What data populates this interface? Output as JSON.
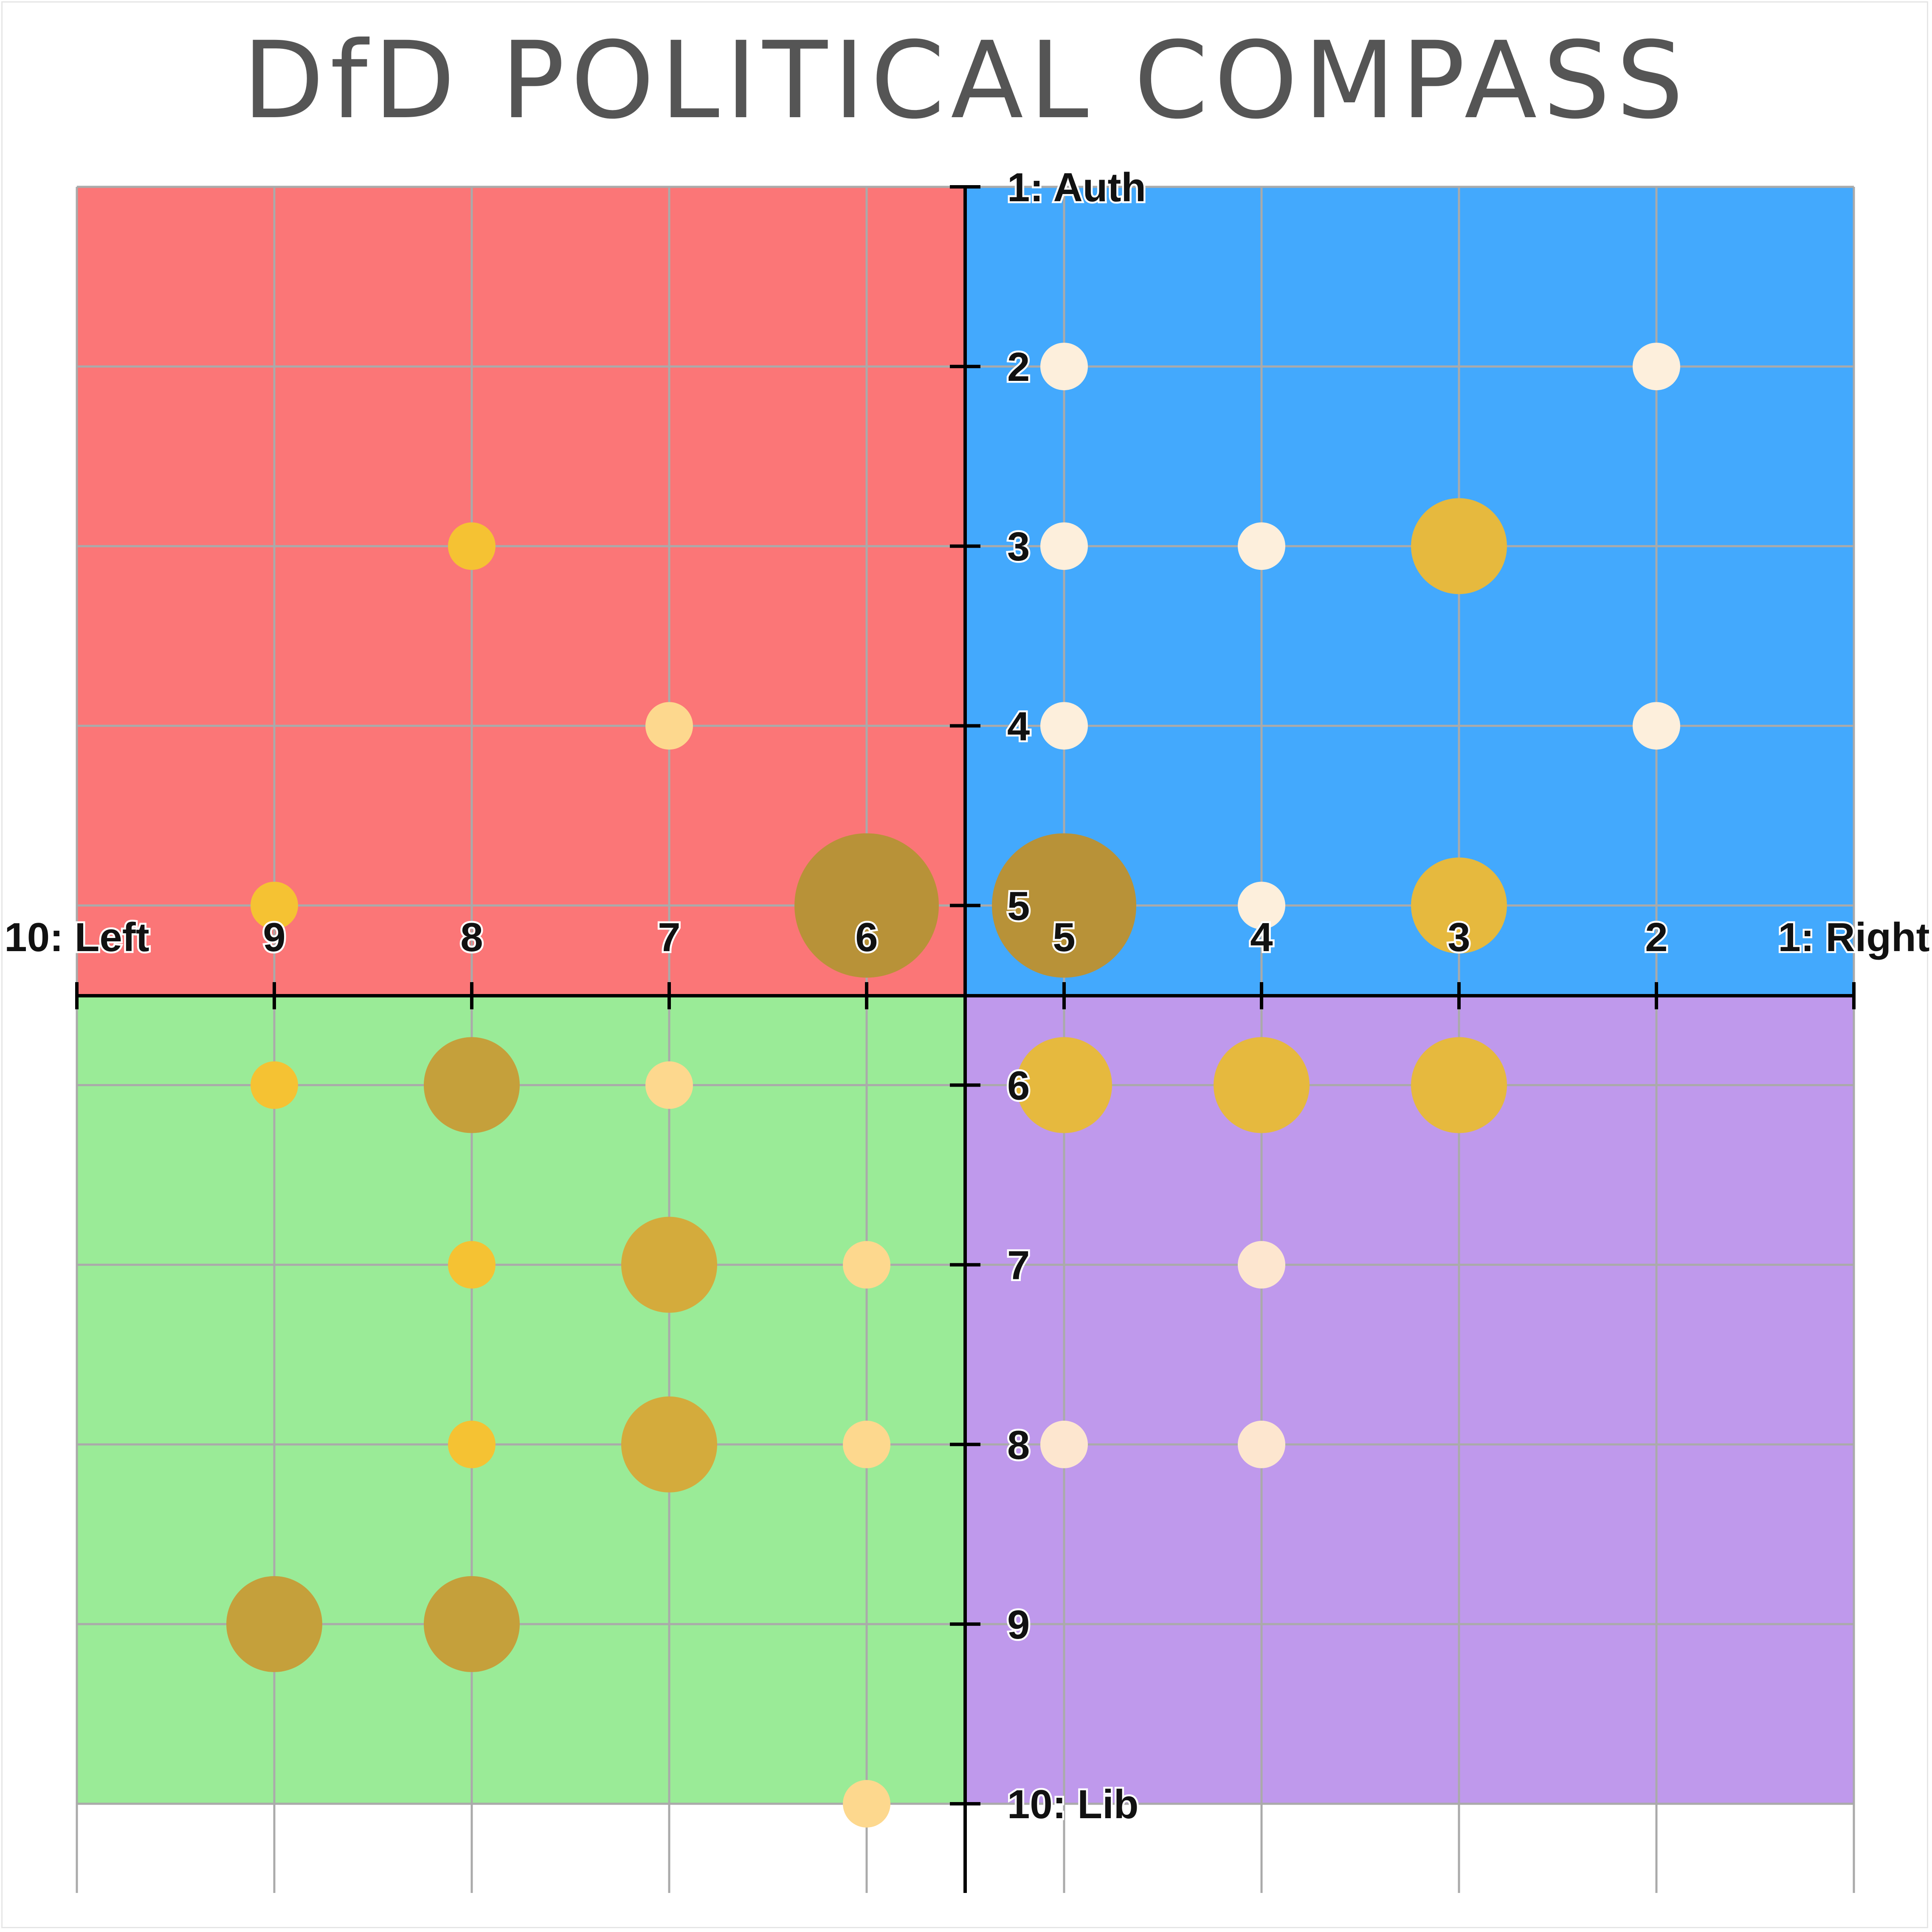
{
  "title": "DfD POLITICAL COMPASS",
  "chart_data": {
    "type": "scatter",
    "title": "DfD POLITICAL COMPASS",
    "subtype": "bubble",
    "x_axis": {
      "range": [
        10,
        1
      ],
      "direction": "decreasing-left-to-right",
      "ticks": [
        "10: Left",
        "9",
        "8",
        "7",
        "6",
        "5",
        "4",
        "3",
        "2",
        "1: Right"
      ]
    },
    "y_axis": {
      "range": [
        1,
        10
      ],
      "direction": "increasing-top-to-bottom",
      "ticks": [
        "1: Auth",
        "2",
        "3",
        "4",
        "5",
        "6",
        "7",
        "8",
        "9",
        "10: Lib"
      ]
    },
    "grid": true,
    "quadrants": [
      {
        "name": "auth-left",
        "color": "#fb7677"
      },
      {
        "name": "auth-right",
        "color": "#43a9fd"
      },
      {
        "name": "lib-left",
        "color": "#9aeb97"
      },
      {
        "name": "lib-right",
        "color": "#bf99ec"
      }
    ],
    "bubble_color_scale": [
      "#fdefdc",
      "#fdd88e",
      "#f5c233",
      "#e6b93e",
      "#c5a03b",
      "#b89238"
    ],
    "points": [
      {
        "x": 8,
        "y": 3,
        "size": 1
      },
      {
        "x": 7,
        "y": 4,
        "size": 1
      },
      {
        "x": 9,
        "y": 5,
        "size": 1
      },
      {
        "x": 6,
        "y": 5,
        "size": 4
      },
      {
        "x": 5,
        "y": 2,
        "size": 1
      },
      {
        "x": 2,
        "y": 2,
        "size": 1
      },
      {
        "x": 5,
        "y": 3,
        "size": 1
      },
      {
        "x": 4,
        "y": 3,
        "size": 1
      },
      {
        "x": 3,
        "y": 3,
        "size": 2
      },
      {
        "x": 5,
        "y": 4,
        "size": 1
      },
      {
        "x": 2,
        "y": 4,
        "size": 1
      },
      {
        "x": 5,
        "y": 5,
        "size": 4
      },
      {
        "x": 4,
        "y": 5,
        "size": 1
      },
      {
        "x": 3,
        "y": 5,
        "size": 2
      },
      {
        "x": 9,
        "y": 6,
        "size": 1
      },
      {
        "x": 8,
        "y": 6,
        "size": 2
      },
      {
        "x": 7,
        "y": 6,
        "size": 1
      },
      {
        "x": 8,
        "y": 7,
        "size": 1
      },
      {
        "x": 7,
        "y": 7,
        "size": 2
      },
      {
        "x": 6,
        "y": 7,
        "size": 1
      },
      {
        "x": 8,
        "y": 8,
        "size": 1
      },
      {
        "x": 7,
        "y": 8,
        "size": 2
      },
      {
        "x": 6,
        "y": 8,
        "size": 1
      },
      {
        "x": 9,
        "y": 9,
        "size": 2
      },
      {
        "x": 8,
        "y": 9,
        "size": 2
      },
      {
        "x": 6,
        "y": 10,
        "size": 1
      },
      {
        "x": 5,
        "y": 6,
        "size": 2
      },
      {
        "x": 4,
        "y": 6,
        "size": 2
      },
      {
        "x": 3,
        "y": 6,
        "size": 2
      },
      {
        "x": 4,
        "y": 7,
        "size": 1
      },
      {
        "x": 5,
        "y": 8,
        "size": 1
      },
      {
        "x": 4,
        "y": 8,
        "size": 1
      }
    ]
  }
}
